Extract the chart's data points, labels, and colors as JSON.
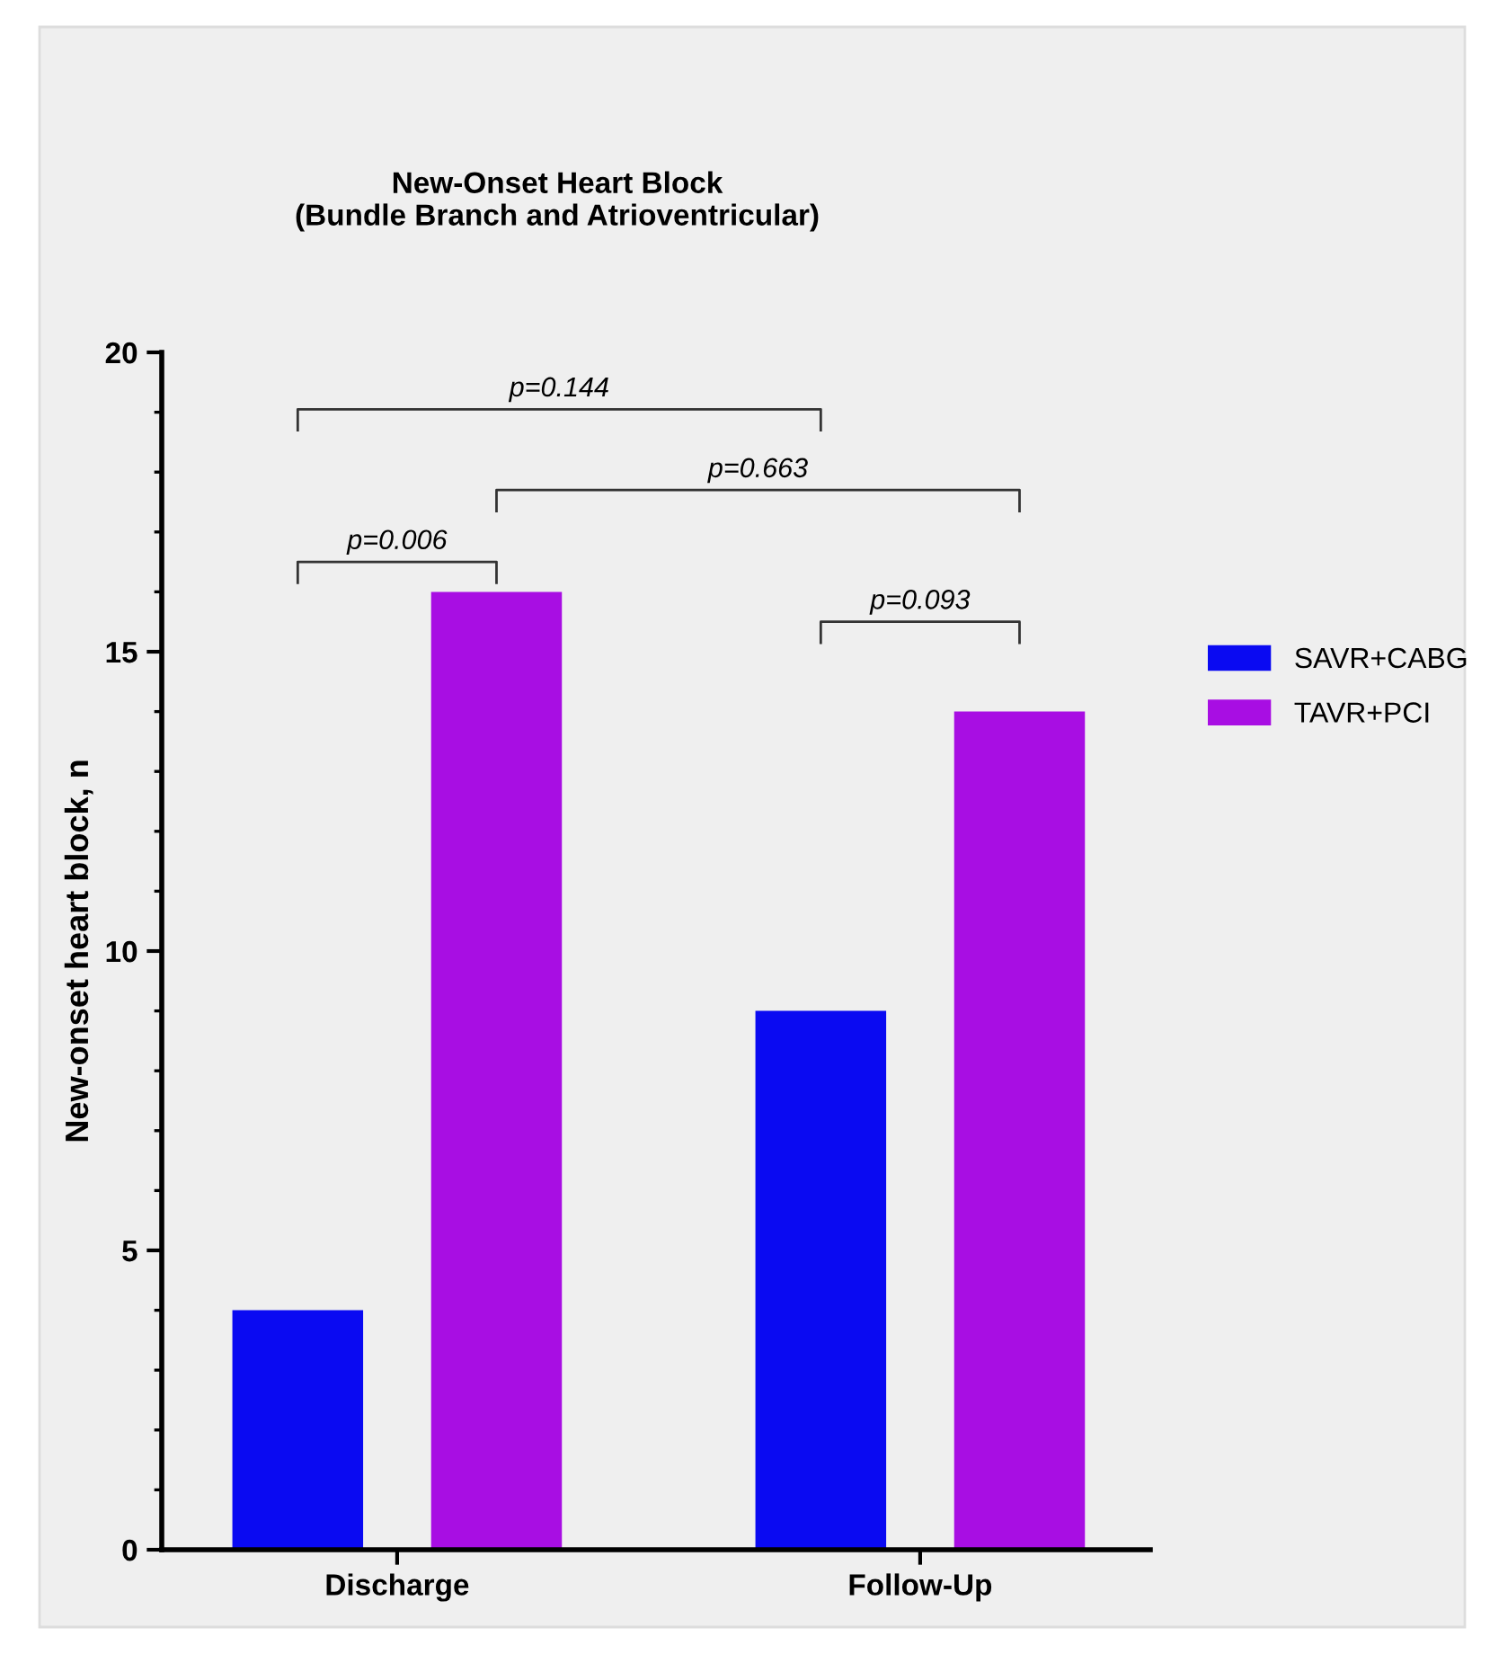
{
  "chart_data": {
    "type": "bar",
    "title": "New-Onset Heart Block\n(Bundle Branch and Atrioventricular)",
    "ylabel": "New-onset heart block, n",
    "categories": [
      "Discharge",
      "Follow-Up"
    ],
    "series": [
      {
        "name": "SAVR+CABG",
        "color": "#0a0af2",
        "values": [
          4,
          9
        ]
      },
      {
        "name": "TAVR+PCI",
        "color": "#a80ee3",
        "values": [
          16,
          14
        ]
      }
    ],
    "ylim": [
      0,
      20
    ],
    "yticks": [
      0,
      5,
      10,
      15,
      20
    ],
    "grid": false,
    "legend": "right",
    "annotations": [
      "p=0.144",
      "p=0.663",
      "p=0.006",
      "p=0.093"
    ]
  }
}
